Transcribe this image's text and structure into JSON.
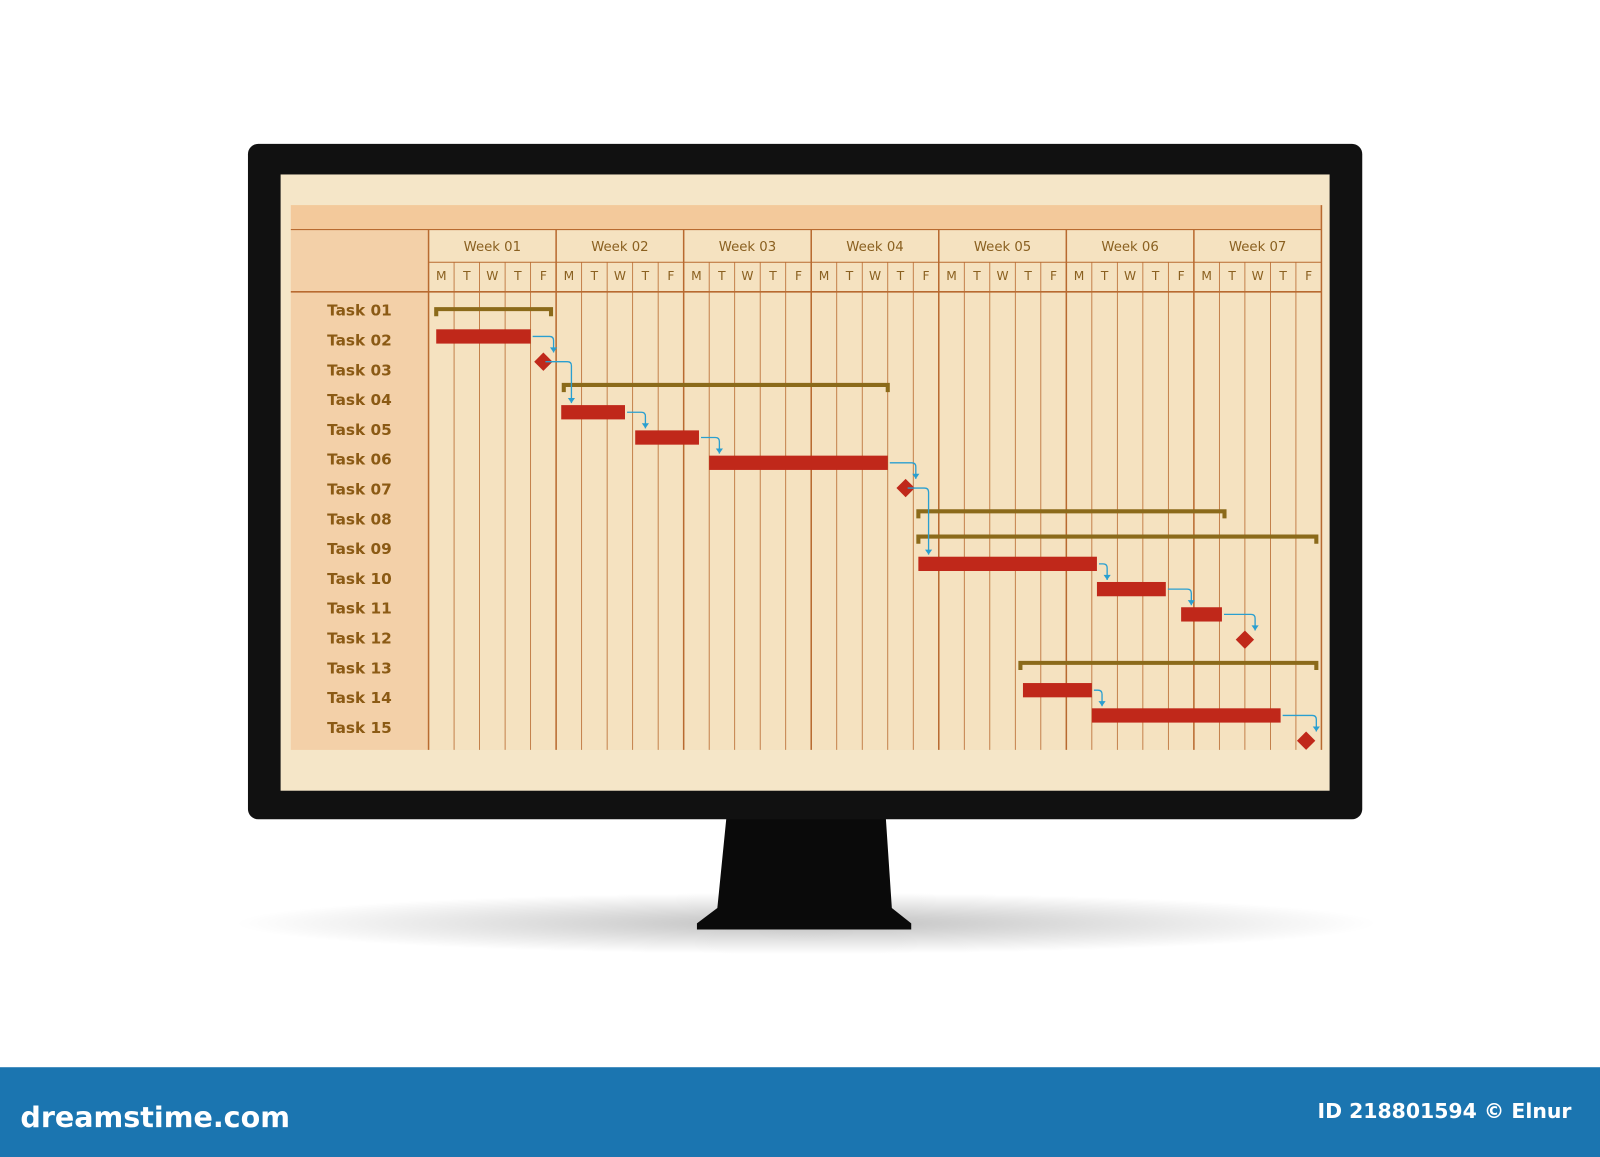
{
  "chart_data": {
    "type": "gantt",
    "weeks": [
      "Week 01",
      "Week 02",
      "Week 03",
      "Week 04",
      "Week 05",
      "Week 06",
      "Week 07"
    ],
    "days": [
      "M",
      "T",
      "W",
      "T",
      "F"
    ],
    "tasks": [
      "Task 01",
      "Task 02",
      "Task 03",
      "Task 04",
      "Task 05",
      "Task 06",
      "Task 07",
      "Task 08",
      "Task 09",
      "Task 10",
      "Task 11",
      "Task 12",
      "Task 13",
      "Task 14",
      "Task 15"
    ],
    "bars": [
      {
        "kind": "summary",
        "start": 0.3,
        "end": 4.8
      },
      {
        "kind": "task",
        "start": 0.3,
        "end": 4
      },
      {
        "kind": "milestone",
        "at": 4.5
      },
      {
        "kind": "summary",
        "start": 5.3,
        "end": 18
      },
      {
        "kind": "task",
        "start": 5.2,
        "end": 7.7
      },
      {
        "kind": "task",
        "start": 8.1,
        "end": 10.6
      },
      {
        "kind": "task",
        "start": 11,
        "end": 18
      },
      {
        "kind": "milestone",
        "at": 18.7
      },
      {
        "kind": "summary",
        "start": 19.2,
        "end": 31.2
      },
      {
        "kind": "summary",
        "start": 19.2,
        "end": 34.8
      },
      {
        "kind": "task",
        "start": 19.2,
        "end": 26.2
      },
      {
        "kind": "task",
        "start": 26.2,
        "end": 28.9
      },
      {
        "kind": "task",
        "start": 29.5,
        "end": 31.1
      },
      {
        "kind": "milestone",
        "at": 32
      },
      {
        "kind": "summary",
        "start": 23.2,
        "end": 34.8
      },
      {
        "kind": "task",
        "start": 23.3,
        "end": 26
      },
      {
        "kind": "task",
        "start": 26,
        "end": 33.4
      },
      {
        "kind": "milestone",
        "at": 34.4
      }
    ],
    "colors": {
      "summary": "#8b6a1a",
      "task": "#c0281a",
      "milestone": "#c0281a",
      "link": "#2a9fd0"
    }
  },
  "footer": {
    "brand": "dreamstime.com",
    "credit": "ID 218801594 © Elnur"
  }
}
